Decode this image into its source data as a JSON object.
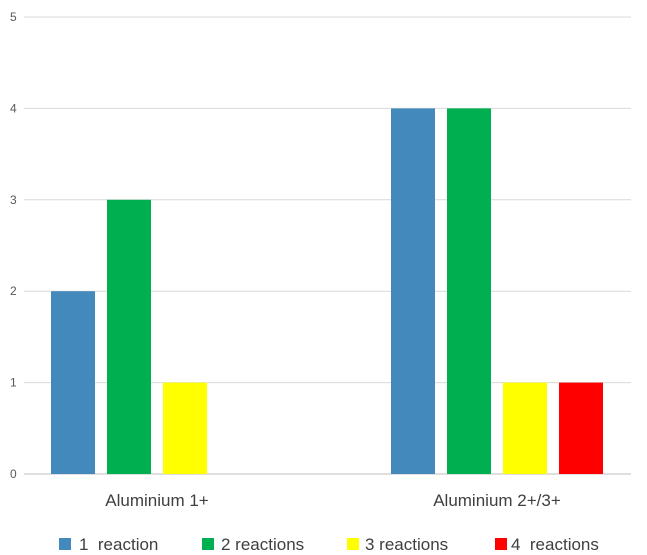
{
  "chart_data": {
    "type": "bar",
    "title": "",
    "xlabel": "",
    "ylabel": "",
    "categories": [
      "Aluminium 1+",
      "Aluminium 2+/3+"
    ],
    "series": [
      {
        "name": "1  reaction",
        "color": "#4389BB",
        "values": [
          2,
          4
        ]
      },
      {
        "name": "2 reactions",
        "color": "#00B050",
        "values": [
          3,
          4
        ]
      },
      {
        "name": "3 reactions",
        "color": "#FFFF00",
        "values": [
          1,
          1
        ]
      },
      {
        "name": "4  reactions",
        "color": "#FF0000",
        "values": [
          0,
          1
        ]
      }
    ],
    "ylim": [
      0,
      5
    ],
    "yticks": [
      0,
      1,
      2,
      3,
      4,
      5
    ],
    "grid": true,
    "legend": "bottom"
  }
}
